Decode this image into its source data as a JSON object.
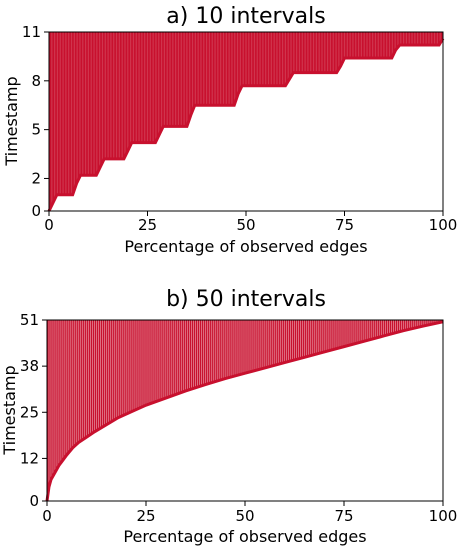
{
  "chart_data": [
    {
      "type": "bar",
      "title": "a) 10 intervals",
      "xlabel": "Percentage of observed edges",
      "ylabel": "Timestamp",
      "xlim": [
        0,
        100
      ],
      "ylim": [
        0,
        11
      ],
      "xticks": [
        "0",
        "25",
        "50",
        "75",
        "100"
      ],
      "xtick_values": [
        0,
        25,
        50,
        75,
        100
      ],
      "yticks": [
        "0",
        "2",
        "5",
        "8",
        "11"
      ],
      "ytick_values": [
        0,
        2,
        5,
        8,
        11
      ],
      "color": "#c8102e",
      "grid": false,
      "intervals": 10,
      "x": [
        0,
        1,
        2,
        6,
        7,
        8,
        12,
        13,
        14,
        19,
        20,
        21,
        27,
        28,
        29,
        35,
        36,
        37,
        47,
        48,
        49,
        60,
        61,
        62,
        73,
        74,
        75,
        87,
        88,
        89,
        99,
        100
      ],
      "y": [
        0,
        0.5,
        1,
        1,
        1.7,
        2.2,
        2.2,
        2.7,
        3.2,
        3.2,
        3.7,
        4.2,
        4.2,
        4.7,
        5.2,
        5.2,
        5.9,
        6.5,
        6.5,
        7.2,
        7.7,
        7.7,
        8.1,
        8.5,
        8.5,
        8.9,
        9.4,
        9.4,
        9.9,
        10.2,
        10.2,
        10.6
      ]
    },
    {
      "type": "bar",
      "title": "b) 50 intervals",
      "xlabel": "Percentage of observed edges",
      "ylabel": "Timestamp",
      "xlim": [
        0,
        100
      ],
      "ylim": [
        0,
        51
      ],
      "xticks": [
        "0",
        "25",
        "50",
        "75",
        "100"
      ],
      "xtick_values": [
        0,
        25,
        50,
        75,
        100
      ],
      "yticks": [
        "0",
        "12",
        "25",
        "38",
        "51"
      ],
      "ytick_values": [
        0,
        12,
        25,
        38,
        51
      ],
      "color": "#c8102e",
      "grid": false,
      "intervals": 50,
      "x": [
        0,
        0.5,
        1,
        2,
        3,
        4,
        5,
        6.5,
        8,
        10,
        12,
        15,
        18,
        21,
        25,
        30,
        35,
        40,
        45,
        50,
        55,
        60,
        65,
        70,
        75,
        80,
        85,
        90,
        95,
        100
      ],
      "y": [
        0,
        4,
        6,
        8,
        10,
        11.5,
        13,
        15,
        16.5,
        18,
        19.5,
        21.5,
        23.5,
        25,
        27,
        29,
        31,
        32.8,
        34.5,
        36,
        37.5,
        39,
        40.5,
        42,
        43.5,
        45,
        46.5,
        48,
        49.3,
        50.5
      ]
    }
  ]
}
